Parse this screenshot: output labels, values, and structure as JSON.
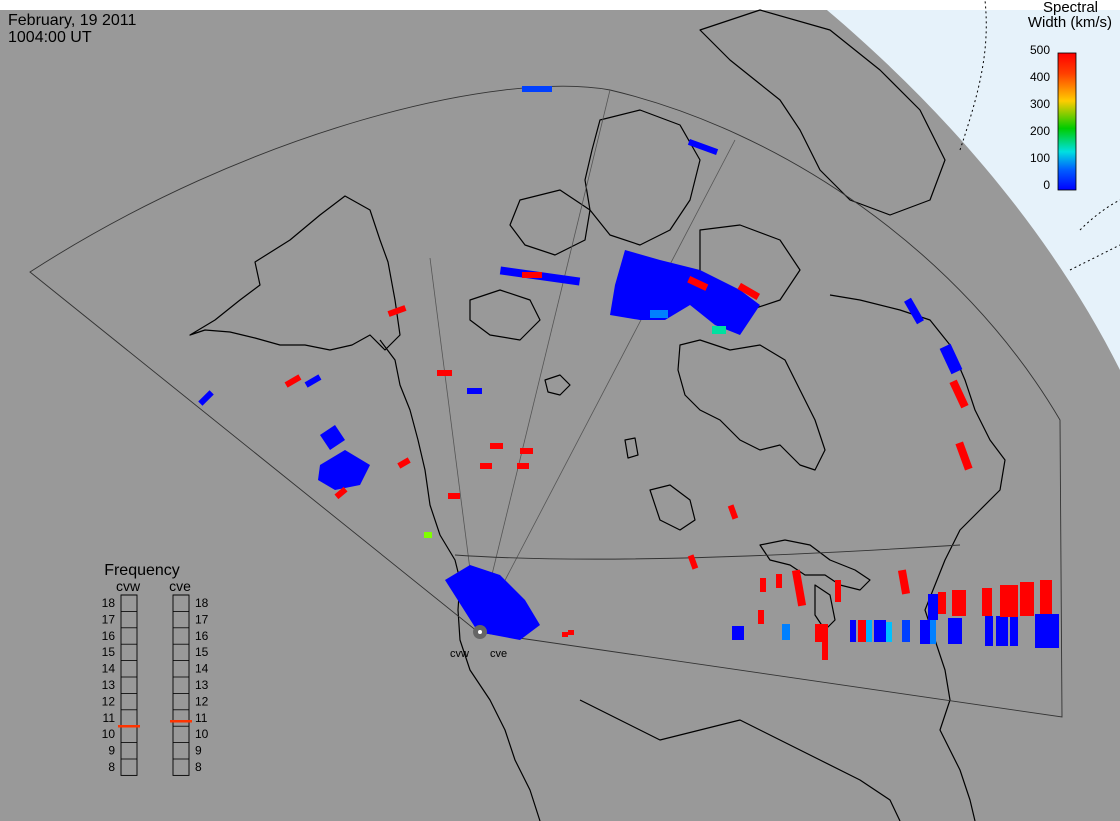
{
  "header": {
    "date": "February, 19 2011",
    "time": "1004:00 UT"
  },
  "colorbar": {
    "title_line1": "Spectral",
    "title_line2": "Width (km/s)",
    "ticks": [
      "500",
      "400",
      "300",
      "200",
      "100",
      "0"
    ],
    "colors": [
      "#ff0000",
      "#ff8000",
      "#ffd700",
      "#00cc00",
      "#00e0e0",
      "#0040ff",
      "#0000ff"
    ]
  },
  "frequency": {
    "title": "Frequency",
    "radars": [
      "cvw",
      "cve"
    ],
    "levels": [
      "18",
      "17",
      "16",
      "15",
      "14",
      "13",
      "12",
      "11",
      "10",
      "9",
      "8"
    ],
    "cvw_mhz": 10.5,
    "cve_mhz": 10.8,
    "indicator_color": "#ff3300"
  },
  "map": {
    "site_labels": [
      "cvw",
      "cve"
    ],
    "background": "#999999",
    "polar_region_color": "#ddeeff"
  },
  "chart_data": {
    "type": "map",
    "title": "",
    "description_legend": "Spectral Width (km/s) 0-500",
    "value_range": [
      0,
      500
    ]
  }
}
